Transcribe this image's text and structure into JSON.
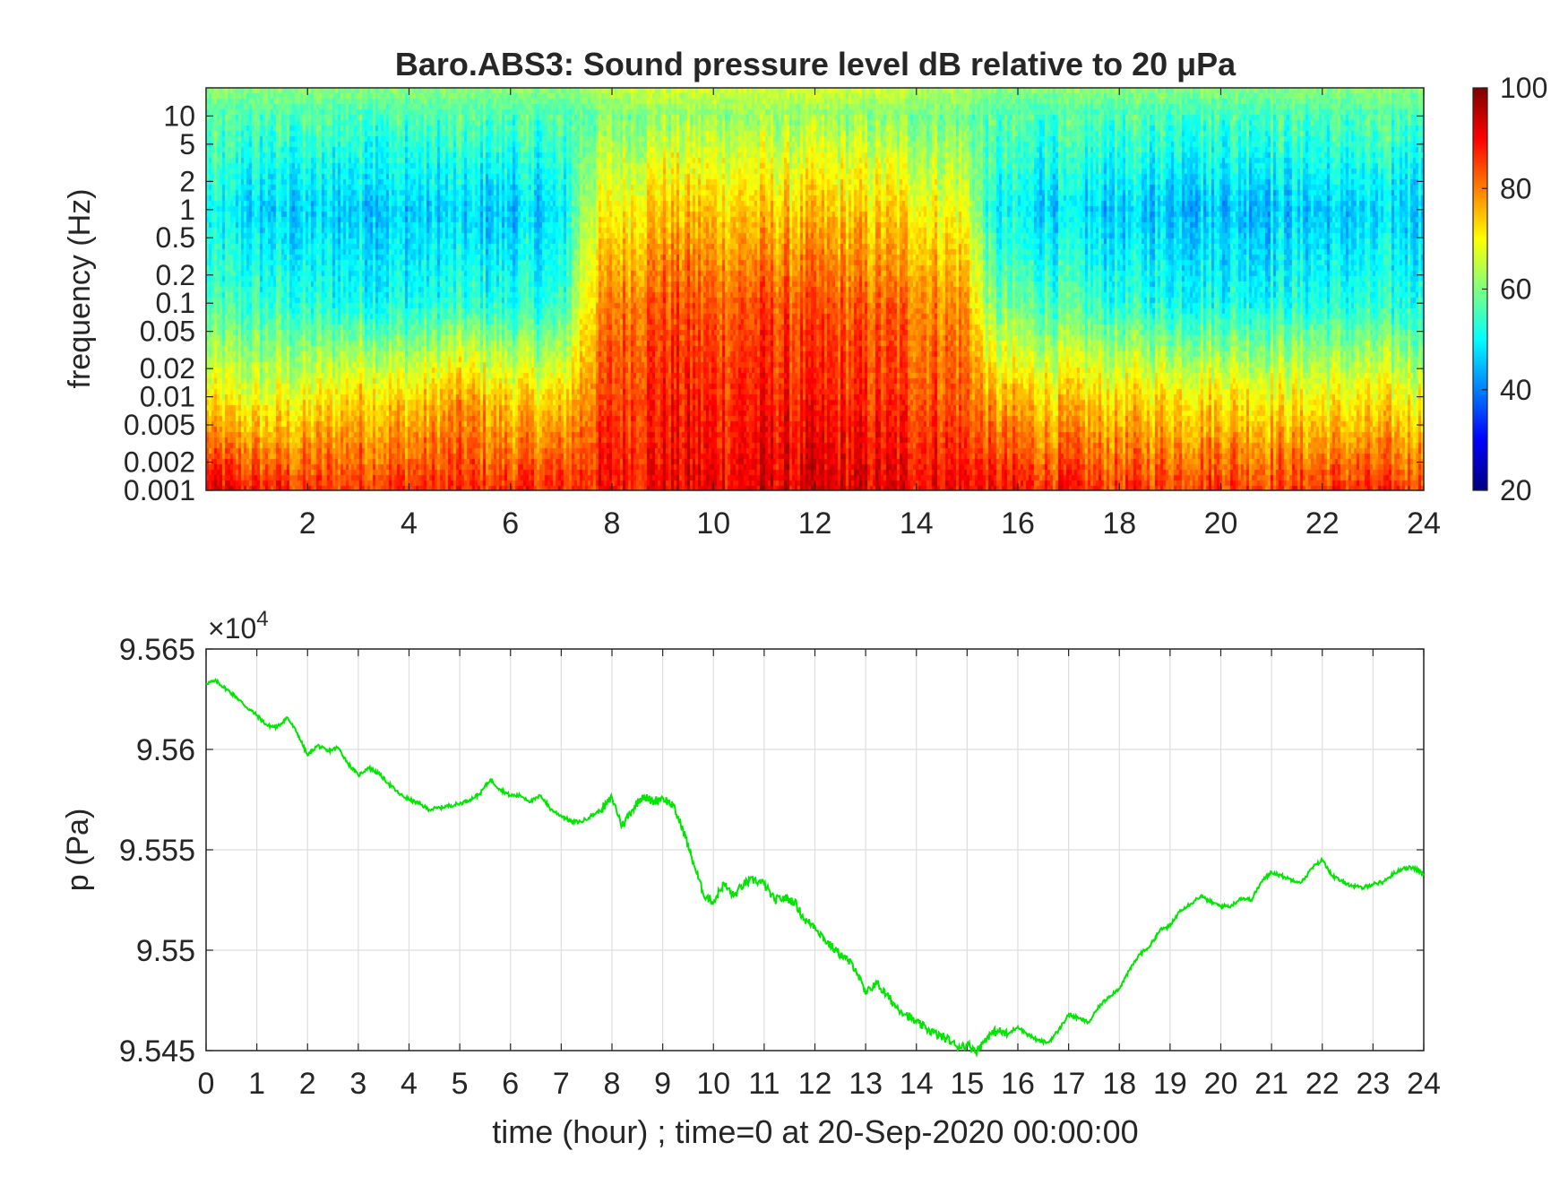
{
  "figure": {
    "title": "Baro.ABS3: Sound pressure level dB relative to 20 μPa"
  },
  "spectrogram": {
    "ylabel": "frequency (Hz)",
    "yticks": [
      "10",
      "5",
      "2",
      "1",
      "0.5",
      "0.2",
      "0.1",
      "0.05",
      "0.02",
      "0.01",
      "0.005",
      "0.002",
      "0.001"
    ],
    "xticks": [
      "2",
      "4",
      "6",
      "8",
      "10",
      "12",
      "14",
      "16",
      "18",
      "20",
      "22",
      "24"
    ],
    "colorbar_ticks": [
      "100",
      "80",
      "60",
      "40",
      "20"
    ],
    "colormap": "jet"
  },
  "pressure": {
    "exponent": "×10",
    "exponent_power": "4",
    "ylabel": "p (Pa)",
    "xlabel": "time (hour) ; time=0 at 20-Sep-2020 00:00:00",
    "yticks": [
      "9.565",
      "9.56",
      "9.555",
      "9.55",
      "9.545"
    ],
    "xticks": [
      "0",
      "1",
      "2",
      "3",
      "4",
      "5",
      "6",
      "7",
      "8",
      "9",
      "10",
      "11",
      "12",
      "13",
      "14",
      "15",
      "16",
      "17",
      "18",
      "19",
      "20",
      "21",
      "22",
      "23",
      "24"
    ],
    "line_color": "#00e600"
  },
  "chart_data": [
    {
      "type": "heatmap",
      "title": "Baro.ABS3: Sound pressure level dB relative to 20 μPa",
      "xlabel": "",
      "ylabel": "frequency (Hz)",
      "xlim": [
        0,
        24
      ],
      "ylim": [
        0.001,
        20
      ],
      "y_scale": "log",
      "clim": [
        20,
        100
      ],
      "colormap": "jet",
      "description_values": {
        "time_hour": [
          0,
          1,
          2,
          3,
          4,
          5,
          6,
          7,
          7.5,
          8,
          9,
          10,
          11,
          12,
          13,
          14,
          15,
          15.5,
          16,
          17,
          18,
          19,
          20,
          21,
          22,
          23,
          24
        ],
        "level_0p001Hz_dB": [
          92,
          88,
          86,
          86,
          87,
          86,
          87,
          87,
          88,
          89,
          90,
          91,
          92,
          92,
          92,
          91,
          90,
          89,
          88,
          87,
          86,
          86,
          87,
          86,
          86,
          86,
          86
        ],
        "level_0p01Hz_dB": [
          70,
          68,
          69,
          74,
          72,
          77,
          73,
          72,
          80,
          85,
          88,
          87,
          88,
          87,
          86,
          85,
          83,
          76,
          74,
          73,
          72,
          73,
          72,
          71,
          70,
          70,
          70
        ],
        "level_0p1Hz_dB": [
          55,
          54,
          52,
          52,
          51,
          53,
          52,
          52,
          72,
          80,
          84,
          83,
          84,
          83,
          82,
          81,
          78,
          58,
          57,
          55,
          53,
          52,
          52,
          52,
          52,
          52,
          53
        ],
        "level_1Hz_dB": [
          50,
          46,
          46,
          47,
          46,
          46,
          46,
          47,
          66,
          70,
          75,
          74,
          74,
          74,
          73,
          72,
          68,
          50,
          49,
          47,
          46,
          46,
          46,
          46,
          46,
          46,
          47
        ],
        "level_10Hz_dB": [
          56,
          56,
          56,
          56,
          56,
          56,
          56,
          56,
          58,
          60,
          62,
          62,
          62,
          62,
          61,
          60,
          59,
          56,
          56,
          56,
          56,
          56,
          56,
          56,
          56,
          56,
          56
        ]
      }
    },
    {
      "type": "line",
      "xlabel": "time (hour) ; time=0 at 20-Sep-2020 00:00:00",
      "ylabel": "p (Pa)",
      "xlim": [
        0,
        24
      ],
      "ylim": [
        95450,
        95650
      ],
      "grid": true,
      "series": [
        {
          "x": [
            0,
            0.2,
            0.4,
            0.6,
            0.8,
            1.0,
            1.2,
            1.4,
            1.6,
            1.8,
            2.0,
            2.2,
            2.4,
            2.6,
            2.8,
            3.0,
            3.2,
            3.4,
            3.6,
            3.8,
            4.0,
            4.2,
            4.4,
            4.6,
            4.8,
            5.0,
            5.2,
            5.4,
            5.6,
            5.8,
            6.0,
            6.2,
            6.4,
            6.6,
            6.8,
            7.0,
            7.2,
            7.4,
            7.6,
            7.8,
            8.0,
            8.2,
            8.4,
            8.6,
            8.8,
            9.0,
            9.2,
            9.4,
            9.6,
            9.8,
            10.0,
            10.2,
            10.4,
            10.6,
            10.8,
            11.0,
            11.2,
            11.4,
            11.6,
            11.8,
            12.0,
            12.2,
            12.4,
            12.6,
            12.8,
            13.0,
            13.2,
            13.4,
            13.6,
            13.8,
            14.0,
            14.2,
            14.4,
            14.6,
            14.8,
            15.0,
            15.2,
            15.4,
            15.6,
            15.8,
            16.0,
            16.2,
            16.4,
            16.6,
            16.8,
            17.0,
            17.2,
            17.4,
            17.6,
            17.8,
            18.0,
            18.2,
            18.4,
            18.6,
            18.8,
            19.0,
            19.2,
            19.4,
            19.6,
            19.8,
            20.0,
            20.2,
            20.4,
            20.6,
            20.8,
            21.0,
            21.2,
            21.4,
            21.6,
            21.8,
            22.0,
            22.2,
            22.4,
            22.6,
            22.8,
            23.0,
            23.2,
            23.4,
            23.6,
            23.8,
            24.0
          ],
          "y": [
            95633,
            95634,
            95630,
            95626,
            95621,
            95617,
            95612,
            95611,
            95616,
            95608,
            95597,
            95602,
            95599,
            95601,
            95593,
            95587,
            95591,
            95588,
            95583,
            95578,
            95575,
            95573,
            95570,
            95571,
            95572,
            95573,
            95575,
            95578,
            95585,
            95580,
            95577,
            95577,
            95574,
            95577,
            95570,
            95567,
            95564,
            95564,
            95567,
            95570,
            95576,
            95562,
            95570,
            95577,
            95574,
            95576,
            95572,
            95560,
            95544,
            95528,
            95524,
            95533,
            95527,
            95533,
            95535,
            95533,
            95525,
            95526,
            95524,
            95515,
            95512,
            95505,
            95500,
            95496,
            95491,
            95478,
            95484,
            95478,
            95472,
            95468,
            95464,
            95461,
            95458,
            95456,
            95452,
            95453,
            95450,
            95457,
            95460,
            95458,
            95462,
            95458,
            95455,
            95454,
            95460,
            95468,
            95466,
            95464,
            95472,
            95477,
            95481,
            95490,
            95498,
            95502,
            95510,
            95512,
            95520,
            95523,
            95527,
            95524,
            95522,
            95522,
            95526,
            95525,
            95534,
            95539,
            95537,
            95535,
            95534,
            95541,
            95545,
            95537,
            95534,
            95532,
            95531,
            95533,
            95534,
            95538,
            95541,
            95541,
            95538
          ]
        }
      ]
    }
  ]
}
